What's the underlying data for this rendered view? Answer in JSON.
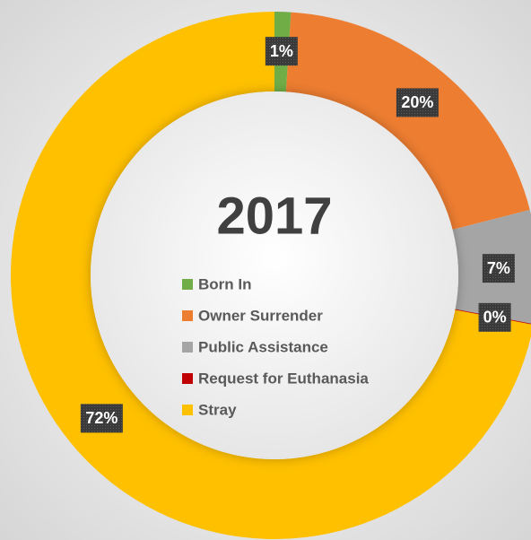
{
  "chart_data": {
    "type": "donut",
    "title": "2017",
    "categories": [
      "Born In",
      "Owner Surrender",
      "Public Assistance",
      "Request for Euthanasia",
      "Stray"
    ],
    "values": [
      1,
      20,
      7,
      0,
      72
    ],
    "value_labels": [
      "1%",
      "20%",
      "7%",
      "0%",
      "72%"
    ],
    "colors": [
      "#70ad47",
      "#ed7d31",
      "#a5a5a5",
      "#c00000",
      "#ffc000"
    ],
    "legend": "center"
  }
}
